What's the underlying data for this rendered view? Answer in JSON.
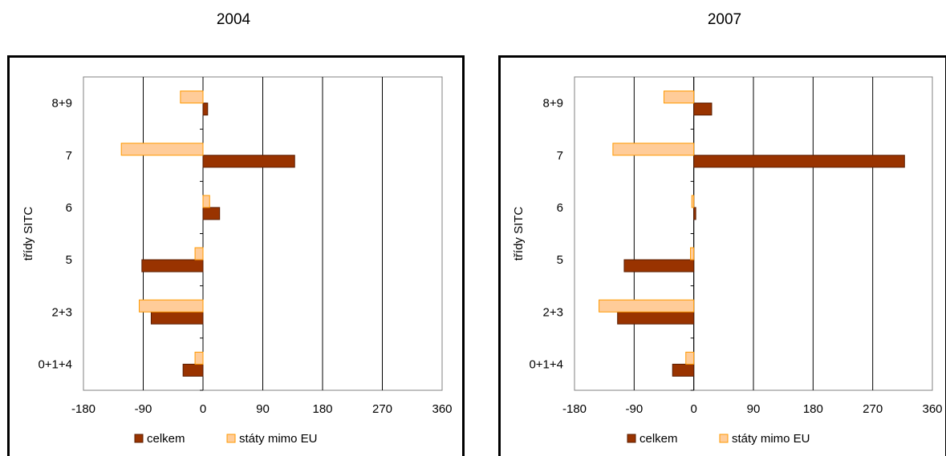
{
  "chart_data": [
    {
      "type": "bar",
      "orientation": "horizontal",
      "title": "2004",
      "ylabel": "třídy SITC",
      "xlabel": "",
      "categories": [
        "0+1+4",
        "2+3",
        "5",
        "6",
        "7",
        "8+9"
      ],
      "x_ticks": [
        "-180",
        "-90",
        "0",
        "90",
        "180",
        "270",
        "360"
      ],
      "xlim": [
        -180,
        360
      ],
      "grid": "vertical",
      "legend_position": "bottom",
      "series": [
        {
          "name": "celkem",
          "color": "#993300",
          "values": [
            -30,
            -78,
            -92,
            25,
            138,
            7
          ]
        },
        {
          "name": "státy mimo EU",
          "color": "#FFCC99",
          "values": [
            -12,
            -96,
            -12,
            10,
            -123,
            -34
          ]
        }
      ]
    },
    {
      "type": "bar",
      "orientation": "horizontal",
      "title": "2007",
      "ylabel": "třídy SITC",
      "xlabel": "",
      "categories": [
        "0+1+4",
        "2+3",
        "5",
        "6",
        "7",
        "8+9"
      ],
      "x_ticks": [
        "-180",
        "-90",
        "0",
        "90",
        "180",
        "270",
        "360"
      ],
      "xlim": [
        -180,
        360
      ],
      "grid": "vertical",
      "legend_position": "bottom",
      "series": [
        {
          "name": "celkem",
          "color": "#993300",
          "values": [
            -32,
            -115,
            -105,
            3,
            318,
            27
          ]
        },
        {
          "name": "státy mimo EU",
          "color": "#FFCC99",
          "values": [
            -12,
            -143,
            -5,
            -3,
            -122,
            -45
          ]
        }
      ]
    }
  ]
}
